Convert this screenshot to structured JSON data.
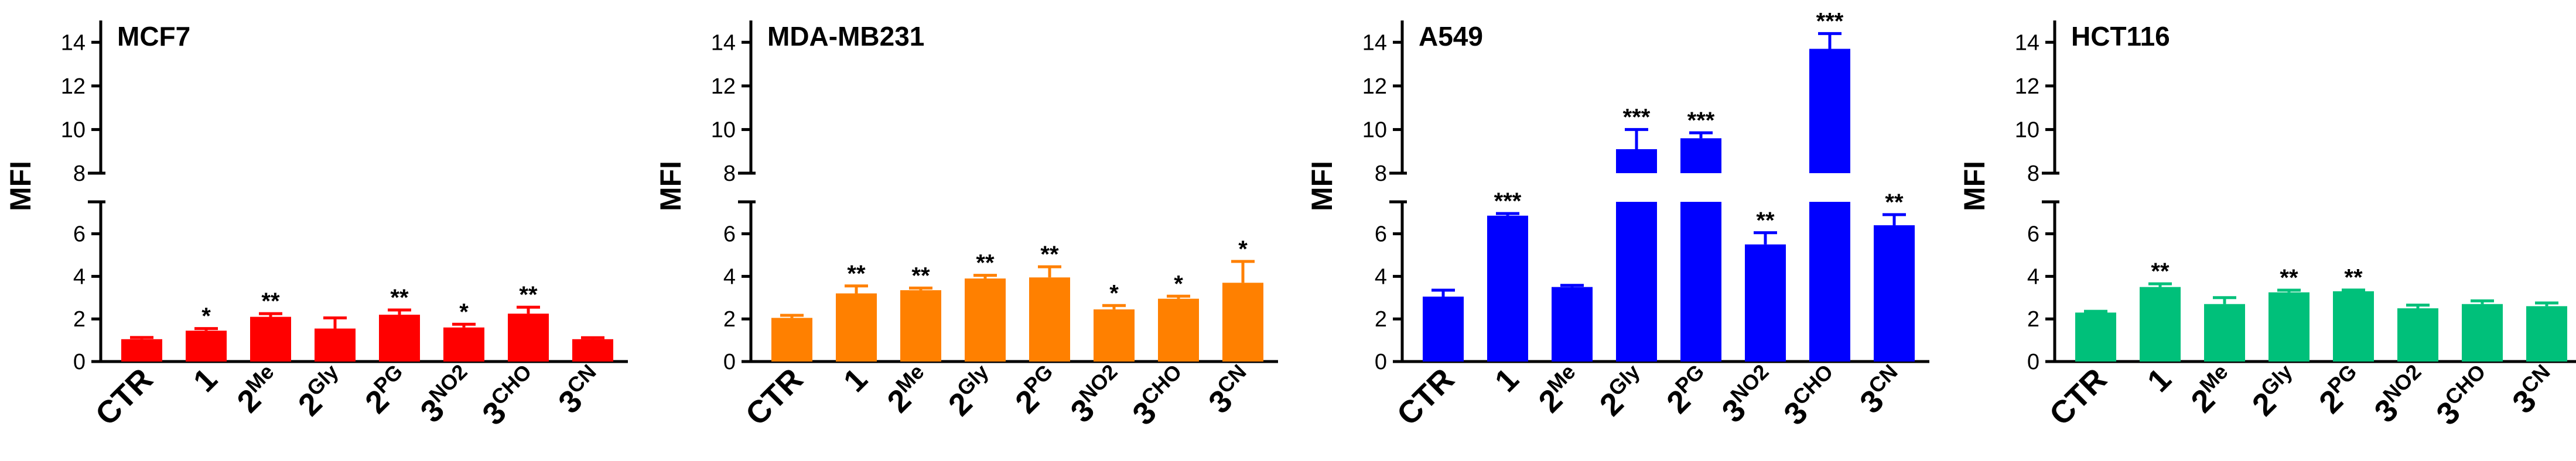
{
  "chart_data": [
    {
      "type": "bar",
      "title": "MCF7",
      "ylabel": "MFI",
      "color": "#FF0000",
      "categories": [
        {
          "main": "CTR",
          "sub": ""
        },
        {
          "main": "1",
          "sub": ""
        },
        {
          "main": "2",
          "sub": "Me"
        },
        {
          "main": "2",
          "sub": "Gly"
        },
        {
          "main": "2",
          "sub": "PG"
        },
        {
          "main": "3",
          "sub": "NO2"
        },
        {
          "main": "3",
          "sub": "CHO"
        },
        {
          "main": "3",
          "sub": "CN"
        }
      ],
      "values": [
        1.05,
        1.45,
        2.1,
        1.55,
        2.2,
        1.6,
        2.25,
        1.05
      ],
      "errors": [
        0.08,
        0.1,
        0.15,
        0.5,
        0.22,
        0.15,
        0.3,
        0.07
      ],
      "significance": [
        "",
        "*",
        "**",
        "",
        "**",
        "*",
        "**",
        ""
      ],
      "y_ticks_lower": [
        "0",
        "2",
        "4",
        "6"
      ],
      "y_ticks_upper": [
        "8",
        "10",
        "12",
        "14"
      ],
      "ylim_lower": [
        0,
        7.5
      ],
      "ylim_upper": [
        8,
        15
      ]
    },
    {
      "type": "bar",
      "title": "MDA-MB231",
      "ylabel": "MFI",
      "color": "#FF8000",
      "categories": [
        {
          "main": "CTR",
          "sub": ""
        },
        {
          "main": "1",
          "sub": ""
        },
        {
          "main": "2",
          "sub": "Me"
        },
        {
          "main": "2",
          "sub": "Gly"
        },
        {
          "main": "2",
          "sub": "PG"
        },
        {
          "main": "3",
          "sub": "NO2"
        },
        {
          "main": "3",
          "sub": "CHO"
        },
        {
          "main": "3",
          "sub": "CN"
        }
      ],
      "values": [
        2.05,
        3.2,
        3.35,
        3.9,
        3.95,
        2.45,
        2.95,
        3.7
      ],
      "errors": [
        0.12,
        0.35,
        0.1,
        0.15,
        0.5,
        0.18,
        0.12,
        1.0
      ],
      "significance": [
        "",
        "**",
        "**",
        "**",
        "**",
        "*",
        "*",
        "*"
      ],
      "y_ticks_lower": [
        "0",
        "2",
        "4",
        "6"
      ],
      "y_ticks_upper": [
        "8",
        "10",
        "12",
        "14"
      ],
      "ylim_lower": [
        0,
        7.5
      ],
      "ylim_upper": [
        8,
        15
      ]
    },
    {
      "type": "bar",
      "title": "A549",
      "ylabel": "MFI",
      "color": "#0000FF",
      "categories": [
        {
          "main": "CTR",
          "sub": ""
        },
        {
          "main": "1",
          "sub": ""
        },
        {
          "main": "2",
          "sub": "Me"
        },
        {
          "main": "2",
          "sub": "Gly"
        },
        {
          "main": "2",
          "sub": "PG"
        },
        {
          "main": "3",
          "sub": "NO2"
        },
        {
          "main": "3",
          "sub": "CHO"
        },
        {
          "main": "3",
          "sub": "CN"
        }
      ],
      "values": [
        3.05,
        6.85,
        3.5,
        9.1,
        9.6,
        5.5,
        13.7,
        6.4
      ],
      "errors": [
        0.3,
        0.1,
        0.08,
        0.9,
        0.25,
        0.55,
        0.7,
        0.5
      ],
      "significance": [
        "",
        "***",
        "",
        "***",
        "***",
        "**",
        "***",
        "**"
      ],
      "y_ticks_lower": [
        "0",
        "2",
        "4",
        "6"
      ],
      "y_ticks_upper": [
        "8",
        "10",
        "12",
        "14"
      ],
      "ylim_lower": [
        0,
        7.5
      ],
      "ylim_upper": [
        8,
        15
      ]
    },
    {
      "type": "bar",
      "title": "HCT116",
      "ylabel": "MFI",
      "color": "#00C07A",
      "categories": [
        {
          "main": "CTR",
          "sub": ""
        },
        {
          "main": "1",
          "sub": ""
        },
        {
          "main": "2",
          "sub": "Me"
        },
        {
          "main": "2",
          "sub": "Gly"
        },
        {
          "main": "2",
          "sub": "PG"
        },
        {
          "main": "3",
          "sub": "NO2"
        },
        {
          "main": "3",
          "sub": "CHO"
        },
        {
          "main": "3",
          "sub": "CN"
        }
      ],
      "values": [
        2.3,
        3.5,
        2.7,
        3.25,
        3.3,
        2.5,
        2.7,
        2.6
      ],
      "errors": [
        0.06,
        0.15,
        0.3,
        0.1,
        0.06,
        0.15,
        0.15,
        0.15
      ],
      "significance": [
        "",
        "**",
        "",
        "**",
        "**",
        "",
        "",
        ""
      ],
      "y_ticks_lower": [
        "0",
        "2",
        "4",
        "6"
      ],
      "y_ticks_upper": [
        "8",
        "10",
        "12",
        "14"
      ],
      "ylim_lower": [
        0,
        7.5
      ],
      "ylim_upper": [
        8,
        15
      ]
    }
  ]
}
